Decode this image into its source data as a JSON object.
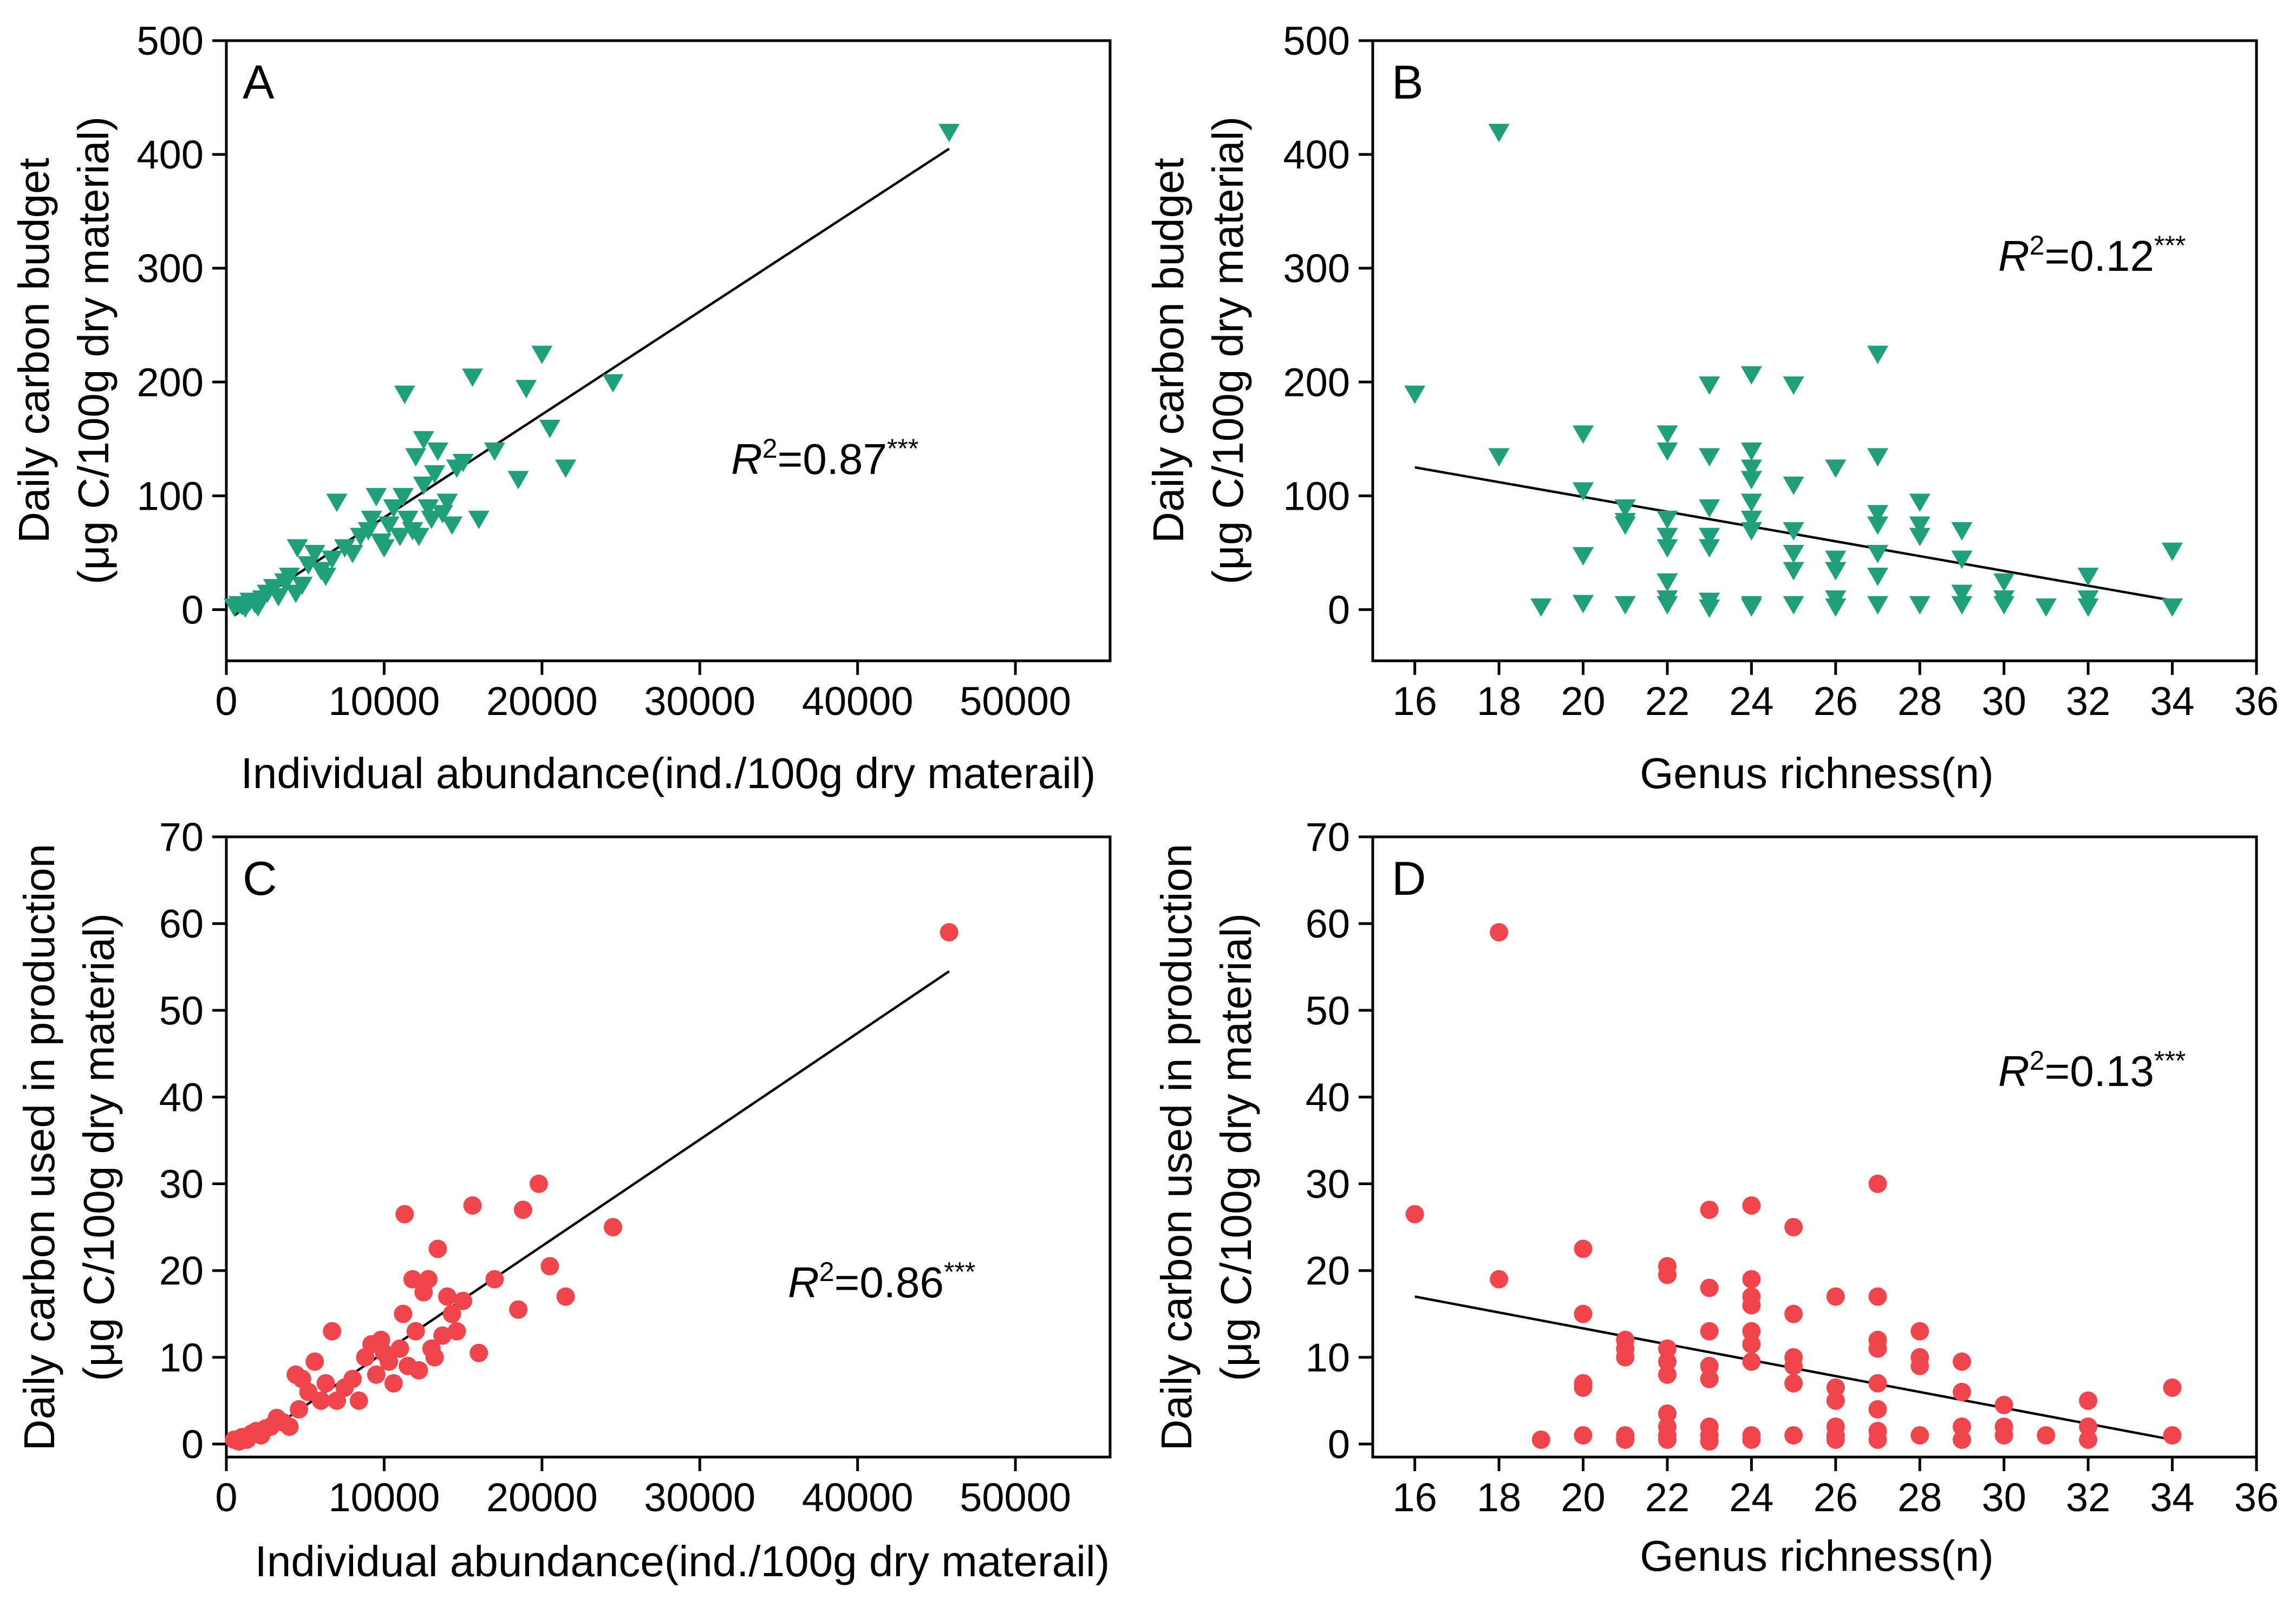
{
  "figure": {
    "panels": [
      {
        "id": "A",
        "label": "A",
        "marker": "triangle-down",
        "color": "#1fa07a",
        "r2": {
          "symbol": "R",
          "exp": "2",
          "text": "=0.87",
          "sig": "***"
        }
      },
      {
        "id": "B",
        "label": "B",
        "marker": "triangle-down",
        "color": "#1fa07a",
        "r2": {
          "symbol": "R",
          "exp": "2",
          "text": "=0.12",
          "sig": "***"
        }
      },
      {
        "id": "C",
        "label": "C",
        "marker": "circle",
        "color": "#f0454d",
        "r2": {
          "symbol": "R",
          "exp": "2",
          "text": "=0.86",
          "sig": "***"
        }
      },
      {
        "id": "D",
        "label": "D",
        "marker": "circle",
        "color": "#f0454d",
        "r2": {
          "symbol": "R",
          "exp": "2",
          "text": "=0.13",
          "sig": "***"
        }
      }
    ]
  },
  "chart_data": [
    {
      "type": "scatter",
      "panel": "A",
      "xlabel": "Individual abundance(ind./100g dry materail)",
      "ylabel_line1": "Daily carbon budget",
      "ylabel_line2": "(μg C/100g dry material)",
      "xlim": [
        0,
        56000
      ],
      "ylim": [
        -45,
        500
      ],
      "xticks": [
        0,
        10000,
        20000,
        30000,
        40000,
        50000
      ],
      "xtick_labels": [
        "0",
        "10000",
        "20000",
        "30000",
        "40000",
        "50000"
      ],
      "yticks": [
        0,
        100,
        200,
        300,
        400,
        500
      ],
      "ytick_labels": [
        "0",
        "100",
        "200",
        "300",
        "400",
        "500"
      ],
      "fit": {
        "x": [
          500,
          45800
        ],
        "y": [
          -5,
          405
        ]
      },
      "points": {
        "x": [
          500,
          800,
          1000,
          1200,
          1500,
          1800,
          2000,
          2300,
          2600,
          3000,
          3300,
          3700,
          4000,
          4400,
          4500,
          4800,
          5200,
          5600,
          6000,
          6300,
          6700,
          7000,
          7500,
          8000,
          8500,
          9000,
          9200,
          9500,
          9800,
          10000,
          10300,
          10600,
          11000,
          11200,
          11500,
          11800,
          12000,
          12200,
          12500,
          12800,
          13000,
          13200,
          13400,
          13700,
          14000,
          14300,
          14600,
          15000,
          15600,
          16000,
          17000,
          18500,
          19000,
          20000,
          20500,
          21500,
          24500,
          11300,
          12500,
          45800
        ],
        "y": [
          3,
          5,
          4,
          2,
          8,
          6,
          3,
          10,
          15,
          20,
          12,
          25,
          30,
          15,
          55,
          22,
          40,
          50,
          35,
          30,
          45,
          95,
          55,
          50,
          65,
          70,
          80,
          100,
          60,
          55,
          75,
          90,
          65,
          100,
          80,
          70,
          135,
          65,
          110,
          90,
          80,
          120,
          140,
          85,
          95,
          75,
          125,
          130,
          205,
          80,
          140,
          115,
          195,
          225,
          160,
          125,
          200,
          190,
          150,
          420
        ]
      }
    },
    {
      "type": "scatter",
      "panel": "B",
      "xlabel": "Genus richness(n)",
      "ylabel_line1": "Daily carbon budget",
      "ylabel_line2": "(μg C/100g dry material)",
      "xlim": [
        15,
        36
      ],
      "ylim": [
        -45,
        500
      ],
      "xticks": [
        16,
        18,
        20,
        22,
        24,
        26,
        28,
        30,
        32,
        34,
        36
      ],
      "xtick_labels": [
        "16",
        "18",
        "20",
        "22",
        "24",
        "26",
        "28",
        "30",
        "32",
        "34",
        "36"
      ],
      "yticks": [
        0,
        100,
        200,
        300,
        400,
        500
      ],
      "ytick_labels": [
        "0",
        "100",
        "200",
        "300",
        "400",
        "500"
      ],
      "fit": {
        "x": [
          16,
          34
        ],
        "y": [
          125,
          8
        ]
      },
      "points": {
        "x": [
          16,
          18,
          18,
          19,
          20,
          20,
          20,
          20,
          21,
          21,
          21,
          21,
          22,
          22,
          22,
          22,
          22,
          22,
          22,
          22,
          23,
          23,
          23,
          23,
          23,
          23,
          23,
          24,
          24,
          24,
          24,
          24,
          24,
          24,
          24,
          24,
          25,
          25,
          25,
          25,
          25,
          25,
          26,
          26,
          26,
          26,
          26,
          27,
          27,
          27,
          27,
          27,
          27,
          27,
          28,
          28,
          28,
          28,
          29,
          29,
          29,
          29,
          30,
          30,
          30,
          31,
          32,
          32,
          32,
          34,
          34
        ],
        "y": [
          190,
          420,
          135,
          3,
          155,
          105,
          48,
          6,
          90,
          78,
          75,
          5,
          155,
          140,
          80,
          65,
          55,
          25,
          10,
          5,
          198,
          135,
          90,
          65,
          55,
          8,
          2,
          207,
          140,
          125,
          115,
          95,
          80,
          70,
          5,
          3,
          198,
          110,
          70,
          50,
          35,
          5,
          125,
          45,
          35,
          10,
          3,
          225,
          135,
          85,
          75,
          50,
          30,
          5,
          95,
          75,
          65,
          5,
          70,
          45,
          15,
          5,
          25,
          10,
          5,
          3,
          30,
          10,
          3,
          52,
          3
        ]
      }
    },
    {
      "type": "scatter",
      "panel": "C",
      "xlabel": "Individual abundance(ind./100g dry materail)",
      "ylabel_line1": "Daily carbon used in production",
      "ylabel_line2": "(μg C/100g dry material)",
      "xlim": [
        0,
        56000
      ],
      "ylim": [
        -1.5,
        70
      ],
      "xticks": [
        0,
        10000,
        20000,
        30000,
        40000,
        50000
      ],
      "xtick_labels": [
        "0",
        "10000",
        "20000",
        "30000",
        "40000",
        "50000"
      ],
      "yticks": [
        0,
        10,
        20,
        30,
        40,
        50,
        60,
        70
      ],
      "ytick_labels": [
        "0",
        "10",
        "20",
        "30",
        "40",
        "50",
        "60",
        "70"
      ],
      "fit": {
        "x": [
          1000,
          45800
        ],
        "y": [
          -0.5,
          54.5
        ]
      },
      "points": {
        "x": [
          500,
          800,
          1000,
          1300,
          1600,
          1900,
          2200,
          2500,
          2800,
          3200,
          3600,
          4000,
          4400,
          4600,
          4800,
          5200,
          5600,
          6000,
          6300,
          6700,
          7000,
          7500,
          8000,
          8400,
          8800,
          9200,
          9500,
          9800,
          10000,
          10300,
          10600,
          11000,
          11200,
          11500,
          11800,
          12000,
          12200,
          12500,
          12800,
          13000,
          13200,
          13400,
          13700,
          14000,
          14300,
          14600,
          15000,
          15600,
          16000,
          17000,
          18500,
          18800,
          19800,
          20500,
          21500,
          24500,
          11300,
          45800
        ],
        "y": [
          0.5,
          0.3,
          0.8,
          0.5,
          1.2,
          1.5,
          1.0,
          1.8,
          2.0,
          3.0,
          2.5,
          2.0,
          8.0,
          4.0,
          7.5,
          6.0,
          9.5,
          5.0,
          7.0,
          13.0,
          5.0,
          6.5,
          7.5,
          5.0,
          10.0,
          11.5,
          8.0,
          12.0,
          10.5,
          9.5,
          7.0,
          11.0,
          15.0,
          9.0,
          19.0,
          13.0,
          8.5,
          17.5,
          19.0,
          11.0,
          10.0,
          22.5,
          12.5,
          17.0,
          15.0,
          13.0,
          16.5,
          27.5,
          10.5,
          19.0,
          15.5,
          27.0,
          30.0,
          20.5,
          17.0,
          25.0,
          26.5,
          59.0
        ]
      }
    },
    {
      "type": "scatter",
      "panel": "D",
      "xlabel": "Genus richness(n)",
      "ylabel_line1": "Daily carbon used in production",
      "ylabel_line2": "(μg C/100g dry material)",
      "xlim": [
        15,
        36
      ],
      "ylim": [
        -1.5,
        70
      ],
      "xticks": [
        16,
        18,
        20,
        22,
        24,
        26,
        28,
        30,
        32,
        34,
        36
      ],
      "xtick_labels": [
        "16",
        "18",
        "20",
        "22",
        "24",
        "26",
        "28",
        "30",
        "32",
        "34",
        "36"
      ],
      "yticks": [
        0,
        10,
        20,
        30,
        40,
        50,
        60,
        70
      ],
      "ytick_labels": [
        "0",
        "10",
        "20",
        "30",
        "40",
        "50",
        "60",
        "70"
      ],
      "fit": {
        "x": [
          16,
          34
        ],
        "y": [
          17,
          0.5
        ]
      },
      "points": {
        "x": [
          16,
          18,
          18,
          19,
          20,
          20,
          20,
          20,
          20,
          21,
          21,
          21,
          21,
          21,
          22,
          22,
          22,
          22,
          22,
          22,
          22,
          22,
          22,
          23,
          23,
          23,
          23,
          23,
          23,
          23,
          23,
          24,
          24,
          24,
          24,
          24,
          24,
          24,
          24,
          24,
          25,
          25,
          25,
          25,
          25,
          25,
          26,
          26,
          26,
          26,
          26,
          26,
          27,
          27,
          27,
          27,
          27,
          27,
          27,
          27,
          28,
          28,
          28,
          28,
          29,
          29,
          29,
          29,
          30,
          30,
          30,
          31,
          32,
          32,
          32,
          34,
          34
        ],
        "y": [
          26.5,
          59.0,
          19.0,
          0.5,
          22.5,
          15.0,
          7.0,
          6.5,
          1.0,
          12.0,
          11.0,
          10.0,
          1.0,
          0.5,
          20.5,
          19.5,
          11.0,
          9.5,
          8.0,
          3.5,
          2.0,
          1.0,
          0.5,
          27.0,
          18.0,
          13.0,
          9.0,
          7.5,
          2.0,
          1.0,
          0.3,
          27.5,
          19.0,
          17.0,
          16.0,
          13.0,
          11.5,
          9.5,
          1.0,
          0.5,
          25.0,
          15.0,
          10.0,
          9.0,
          7.0,
          1.0,
          17.0,
          6.5,
          5.0,
          2.0,
          1.0,
          0.5,
          30.0,
          17.0,
          12.0,
          11.0,
          7.0,
          4.0,
          1.5,
          0.5,
          13.0,
          10.0,
          9.0,
          1.0,
          9.5,
          6.0,
          2.0,
          0.5,
          4.5,
          2.0,
          1.0,
          1.0,
          5.0,
          2.0,
          0.5,
          6.5,
          1.0
        ]
      }
    }
  ]
}
